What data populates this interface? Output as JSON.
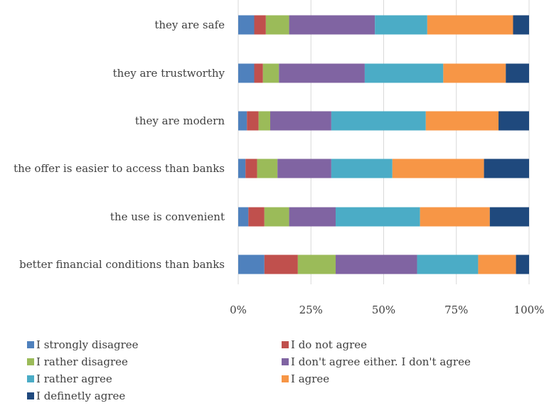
{
  "chart_data": {
    "type": "bar",
    "orientation": "horizontal",
    "stacked": "percent",
    "categories": [
      "they are safe",
      "they are trustworthy",
      "they are modern",
      "the offer is easier to access than banks",
      "the use is convenient",
      "better financial conditions than banks"
    ],
    "series": [
      {
        "name": "I strongly disagree",
        "color": "#4f81bd",
        "values": [
          5.5,
          5.5,
          3,
          2.5,
          3.5,
          9
        ]
      },
      {
        "name": "I do not agree",
        "color": "#c0504d",
        "values": [
          4,
          3,
          4,
          4,
          5.5,
          11.5
        ]
      },
      {
        "name": "I rather disagree",
        "color": "#9bbb59",
        "values": [
          8,
          5.5,
          4,
          7,
          8.5,
          13
        ]
      },
      {
        "name": "I don't agree either. I don't agree",
        "color": "#8064a2",
        "values": [
          29.5,
          29.5,
          21,
          18.5,
          16,
          28
        ]
      },
      {
        "name": "I rather agree",
        "color": "#4bacc6",
        "values": [
          18,
          27,
          32.5,
          21,
          29,
          21
        ]
      },
      {
        "name": "I agree",
        "color": "#f79646",
        "values": [
          29.5,
          21.5,
          25,
          31.5,
          24,
          13
        ]
      },
      {
        "name": "I definetly agree",
        "color": "#1f497d",
        "values": [
          5.5,
          8,
          10.5,
          15.5,
          13.5,
          4.5
        ]
      }
    ],
    "x_ticks": [
      "0%",
      "25%",
      "50%",
      "75%",
      "100%"
    ],
    "xlim": [
      0,
      100
    ],
    "grid": "vertical",
    "legend_position": "bottom",
    "title": "",
    "xlabel": "",
    "ylabel": ""
  }
}
